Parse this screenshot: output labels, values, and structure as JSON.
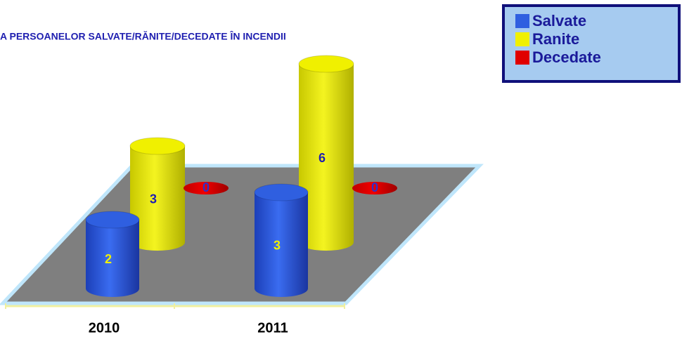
{
  "chart_data": {
    "type": "cylinder3d",
    "title": "A PERSOANELOR SALVATE/RĂNITE/DECEDATE ÎN INCENDII",
    "categories": [
      "2010",
      "2011"
    ],
    "series": [
      {
        "name": "Salvate",
        "color": "#2f5fe0",
        "values": [
          2,
          3
        ]
      },
      {
        "name": "Ranite",
        "color": "#f0f000",
        "values": [
          3,
          6
        ]
      },
      {
        "name": "Decedate",
        "color": "#e00000",
        "values": [
          0,
          0
        ]
      }
    ]
  }
}
